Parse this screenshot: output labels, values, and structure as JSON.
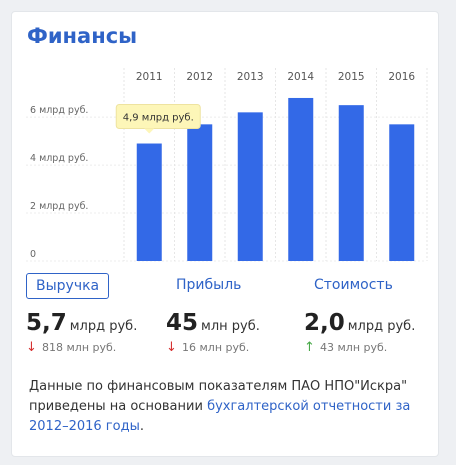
{
  "card": {
    "title": "Финансы"
  },
  "chart_data": {
    "type": "bar",
    "categories": [
      "2011",
      "2012",
      "2013",
      "2014",
      "2015",
      "2016"
    ],
    "values": [
      4.9,
      5.7,
      6.2,
      6.8,
      6.5,
      5.7
    ],
    "yticks": [
      {
        "value": 0,
        "label": "0"
      },
      {
        "value": 2,
        "label": "2 млрд руб."
      },
      {
        "value": 4,
        "label": "4 млрд руб."
      },
      {
        "value": 6,
        "label": "6 млрд руб."
      }
    ],
    "ylim": [
      0,
      8.3
    ],
    "tooltip": {
      "category": "2011",
      "text": "4,9 млрд руб."
    },
    "bar_color": "#3369e7",
    "tooltip_bg": "#fdf6b8"
  },
  "tabs": [
    {
      "label": "Выручка",
      "active": true
    },
    {
      "label": "Прибыль",
      "active": false
    },
    {
      "label": "Стоимость",
      "active": false
    }
  ],
  "metrics": [
    {
      "value": "5,7",
      "unit": "млрд руб.",
      "delta": "818 млн руб.",
      "direction": "down"
    },
    {
      "value": "45",
      "unit": "млн руб.",
      "delta": "16 млн руб.",
      "direction": "down"
    },
    {
      "value": "2,0",
      "unit": "млрд руб.",
      "delta": "43 млн руб.",
      "direction": "up"
    }
  ],
  "note": {
    "text": "Данные по финансовым показателям ПАО НПО\"Искра\" приведены на основании ",
    "link": "бухгалтерской отчетности за 2012–2016 годы",
    "tail": "."
  }
}
